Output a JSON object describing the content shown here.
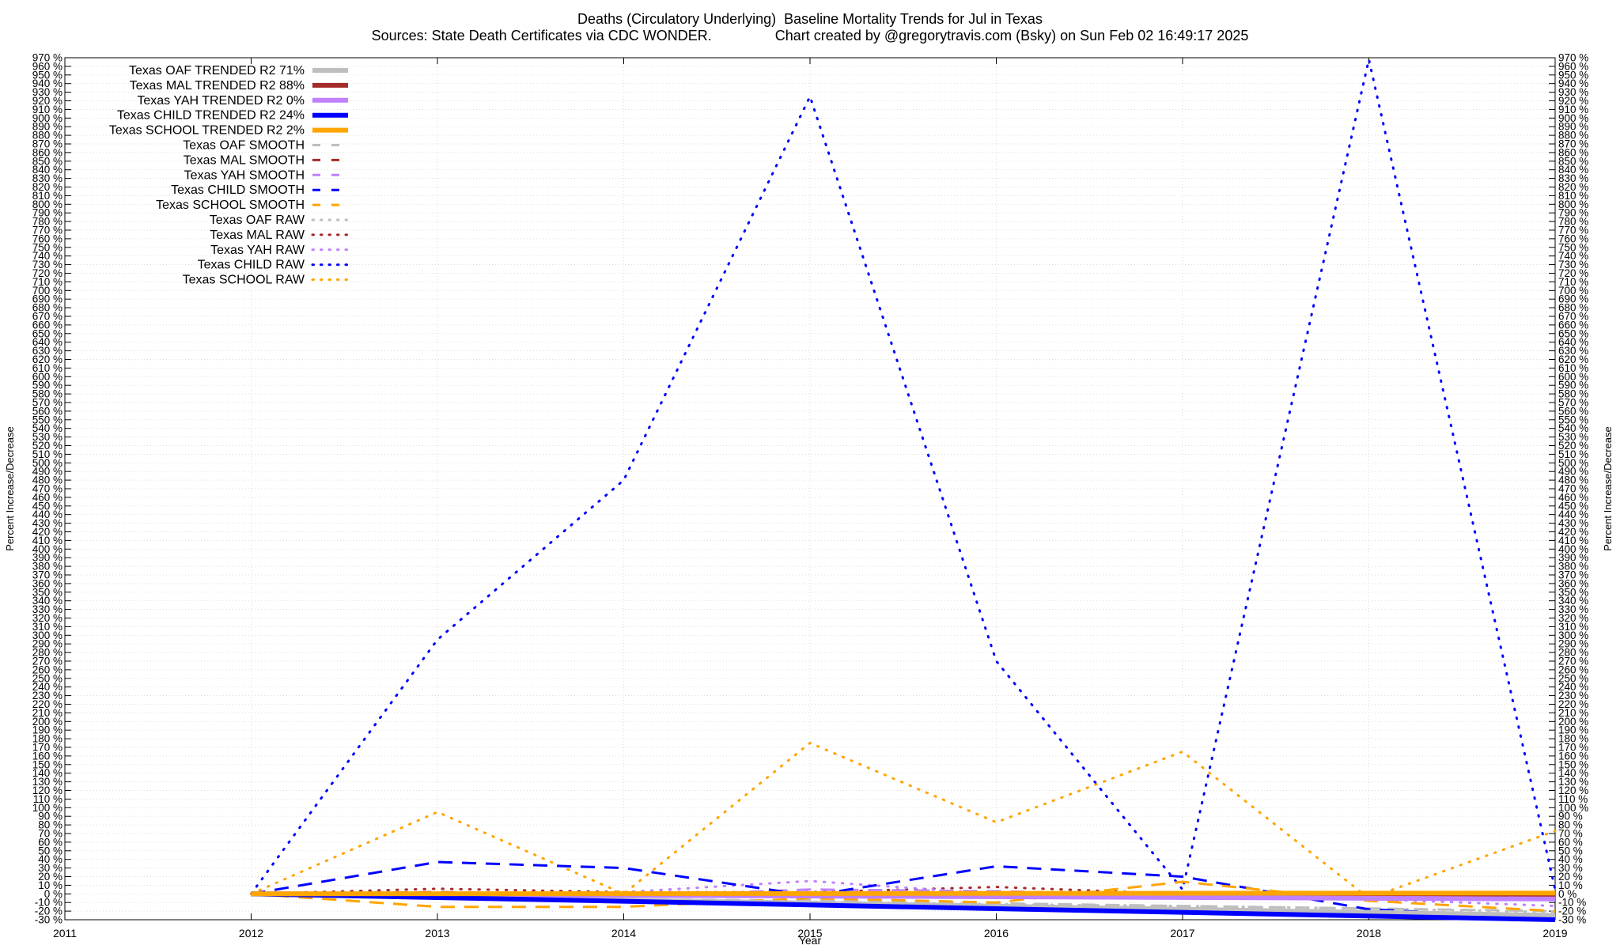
{
  "chart_data": {
    "type": "line",
    "title": "Deaths (Circulatory Underlying)  Baseline Mortality Trends for Jul in Texas",
    "subtitle": "Sources: State Death Certificates via CDC WONDER.                Chart created by @gregorytravis.com (Bsky) on Sun Feb 02 16:49:17 2025",
    "xlabel": "Year",
    "ylabel": "Percent Increase/Decrease",
    "y2label": "Percent Increase/Decrease",
    "xlim": [
      2011,
      2019
    ],
    "ylim": [
      -30,
      970
    ],
    "x_ticks": [
      "2011",
      "2012",
      "2013",
      "2014",
      "2015",
      "2016",
      "2017",
      "2018",
      "2019"
    ],
    "y_tick_step": 10,
    "y_tick_suffix": " %",
    "grid": true,
    "legend_position": "top-left",
    "series": [
      {
        "name": "Texas OAF TRENDED R2  71%",
        "style": "trend",
        "color": "#bebebe",
        "x": [
          2012,
          2019
        ],
        "y": [
          0,
          -25
        ]
      },
      {
        "name": "Texas MAL TRENDED R2  88%",
        "style": "trend",
        "color": "#a52a2a",
        "x": [
          2012,
          2019
        ],
        "y": [
          0,
          -2
        ]
      },
      {
        "name": "Texas YAH TRENDED R2   0%",
        "style": "trend",
        "color": "#c080ff",
        "x": [
          2012,
          2019
        ],
        "y": [
          0,
          -6
        ]
      },
      {
        "name": "Texas CHILD TRENDED R2  24%",
        "style": "trend",
        "color": "#0000ff",
        "x": [
          2012,
          2019
        ],
        "y": [
          0,
          -30
        ]
      },
      {
        "name": "Texas SCHOOL TRENDED R2   2%",
        "style": "trend",
        "color": "#ffa500",
        "x": [
          2012,
          2019
        ],
        "y": [
          0,
          1
        ]
      },
      {
        "name": "Texas OAF SMOOTH",
        "style": "smooth",
        "color": "#bebebe",
        "x": [
          2012,
          2013,
          2014,
          2015,
          2016,
          2017,
          2018,
          2019
        ],
        "y": [
          0,
          -3,
          -6,
          -8,
          -11,
          -14,
          -17,
          -20
        ]
      },
      {
        "name": "Texas MAL SMOOTH",
        "style": "smooth",
        "color": "#a52a2a",
        "x": [
          2012,
          2013,
          2014,
          2015,
          2016,
          2017,
          2018,
          2019
        ],
        "y": [
          0,
          2,
          -1,
          0,
          3,
          -2,
          -2,
          -2
        ]
      },
      {
        "name": "Texas YAH SMOOTH",
        "style": "smooth",
        "color": "#c080ff",
        "x": [
          2012,
          2013,
          2014,
          2015,
          2016,
          2017,
          2018,
          2019
        ],
        "y": [
          0,
          -2,
          -3,
          5,
          3,
          -3,
          -6,
          -7
        ]
      },
      {
        "name": "Texas CHILD SMOOTH",
        "style": "smooth",
        "color": "#0000ff",
        "x": [
          2012,
          2013,
          2014,
          2015,
          2016,
          2017,
          2018,
          2019
        ],
        "y": [
          0,
          37,
          30,
          -2,
          32,
          20,
          -18,
          -28
        ]
      },
      {
        "name": "Texas SCHOOL SMOOTH",
        "style": "smooth",
        "color": "#ffa500",
        "x": [
          2012,
          2013,
          2014,
          2015,
          2016,
          2017,
          2018,
          2019
        ],
        "y": [
          0,
          -15,
          -15,
          -5,
          -10,
          14,
          -8,
          -20
        ]
      },
      {
        "name": "Texas OAF RAW",
        "style": "raw",
        "color": "#bebebe",
        "x": [
          2012,
          2013,
          2014,
          2015,
          2016,
          2017,
          2018,
          2019
        ],
        "y": [
          0,
          -3,
          -7,
          -9,
          -12,
          -14,
          -17,
          -21
        ]
      },
      {
        "name": "Texas MAL RAW",
        "style": "raw",
        "color": "#a52a2a",
        "x": [
          2012,
          2013,
          2014,
          2015,
          2016,
          2017,
          2018,
          2019
        ],
        "y": [
          0,
          6,
          2,
          2,
          8,
          0,
          -4,
          -2
        ]
      },
      {
        "name": "Texas YAH RAW",
        "style": "raw",
        "color": "#c080ff",
        "x": [
          2012,
          2013,
          2014,
          2015,
          2016,
          2017,
          2018,
          2019
        ],
        "y": [
          0,
          -4,
          2,
          15,
          0,
          -5,
          -6,
          -14
        ]
      },
      {
        "name": "Texas CHILD RAW",
        "style": "raw",
        "color": "#0000ff",
        "x": [
          2012,
          2013,
          2014,
          2015,
          2016,
          2017,
          2018,
          2019
        ],
        "y": [
          0,
          295,
          480,
          925,
          270,
          5,
          968,
          5
        ]
      },
      {
        "name": "Texas SCHOOL RAW",
        "style": "raw",
        "color": "#ffa500",
        "x": [
          2012,
          2013,
          2014,
          2015,
          2016,
          2017,
          2018,
          2019
        ],
        "y": [
          0,
          95,
          0,
          175,
          83,
          165,
          -5,
          73
        ]
      }
    ]
  }
}
